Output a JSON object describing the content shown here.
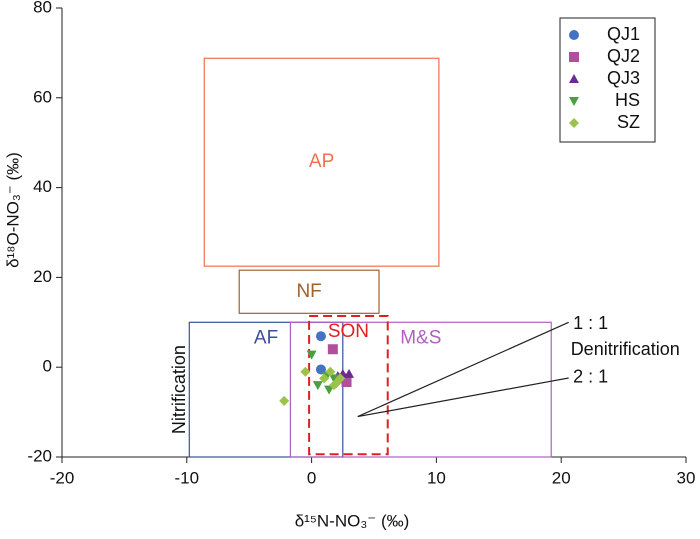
{
  "chart_data": {
    "type": "scatter",
    "xlabel": "δ¹⁵N-NO₃⁻ (‰)",
    "ylabel": "δ¹⁸O-NO₃⁻ (‰)",
    "xlim": [
      -20,
      30
    ],
    "ylim": [
      -20,
      80
    ],
    "xticks": [
      -20,
      -10,
      0,
      10,
      20,
      30
    ],
    "yticks": [
      -20,
      0,
      20,
      40,
      60,
      80
    ],
    "legend": "upper right",
    "regions": [
      {
        "name": "AP",
        "color": "#f07050",
        "x": [
          -8.6,
          10.2
        ],
        "y": [
          22.5,
          68.8
        ]
      },
      {
        "name": "NF",
        "color": "#a0622d",
        "x": [
          -5.8,
          5.4
        ],
        "y": [
          12,
          21.6
        ]
      },
      {
        "name": "AF",
        "color": "#3a4fa0",
        "x": [
          -9.8,
          2.5
        ],
        "y": [
          -20,
          10
        ]
      },
      {
        "name": "M&S",
        "color": "#b060c0",
        "x": [
          -1.7,
          19.2
        ],
        "y": [
          -20,
          10
        ]
      },
      {
        "name": "SON",
        "color": "#e02020",
        "dashed": true,
        "x": [
          -0.2,
          6.1
        ],
        "y": [
          -19.4,
          11.4
        ]
      }
    ],
    "lines": [
      {
        "label": "1 : 1",
        "x": [
          3.7,
          20.6
        ],
        "y": [
          -11,
          10
        ]
      },
      {
        "label": "2 : 1",
        "x": [
          3.7,
          20.6
        ],
        "y": [
          -11,
          -2.4
        ]
      }
    ],
    "annotations": [
      "Denitrification",
      "Nitrification"
    ],
    "series": [
      {
        "name": "QJ1",
        "color": "#4472c4",
        "marker": "circle",
        "x": [
          0.75,
          0.75
        ],
        "y": [
          6.9,
          -0.5
        ]
      },
      {
        "name": "QJ2",
        "color": "#b0509a",
        "marker": "square",
        "x": [
          1.7,
          2.5,
          2.8
        ],
        "y": [
          4,
          -2.5,
          -3.3
        ]
      },
      {
        "name": "QJ3",
        "color": "#6a2c8e",
        "marker": "triangle",
        "x": [
          2.5,
          2.1,
          3
        ],
        "y": [
          -1.5,
          -2,
          -1.5
        ]
      },
      {
        "name": "HS",
        "color": "#4aa040",
        "marker": "triangle-down",
        "x": [
          0,
          0.5,
          1.4,
          1.8,
          1.2
        ],
        "y": [
          2.8,
          -4,
          -5,
          -2.5,
          -2
        ]
      },
      {
        "name": "SZ",
        "color": "#9cc24c",
        "marker": "diamond",
        "x": [
          -2.2,
          -0.5,
          1,
          1.5,
          2,
          2.3,
          1.8
        ],
        "y": [
          -7.5,
          -1,
          -2.5,
          -1,
          -3.5,
          -2.5,
          -4
        ]
      }
    ]
  }
}
